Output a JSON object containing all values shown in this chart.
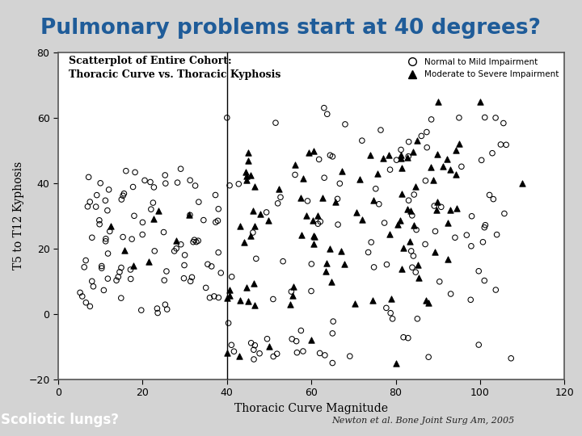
{
  "title": "Pulmonary problems start at 40 degrees?",
  "title_color": "#1F5C99",
  "subtitle_line1": "Scatterplot of Entire Cohort:",
  "subtitle_line2": "Thoracic Curve vs. Thoracic Kyphosis",
  "xlabel": "Thoracic Curve Magnitude",
  "ylabel": "T5 to T12 Kyphosis",
  "xlim": [
    0,
    120
  ],
  "ylim": [
    -20,
    80
  ],
  "xticks": [
    0,
    20,
    40,
    60,
    80,
    100,
    120
  ],
  "yticks": [
    -20,
    0,
    20,
    40,
    60,
    80
  ],
  "vline_x": 40,
  "legend_label_circle": "Normal to Mild Impairment",
  "legend_label_triangle": "Moderate to Severe Impairment",
  "footer_left": "Scoliotic lungs?",
  "footer_left_bg": "#C0522A",
  "footer_left_color": "#FFFFFF",
  "footer_right": "Newton et al. Bone Joint Surg Am, 2005",
  "bg_color": "#D3D3D3",
  "plot_bg": "#FFFFFF",
  "border_color": "#555555",
  "seed": 42,
  "n_circle": 220,
  "n_triangle": 120
}
